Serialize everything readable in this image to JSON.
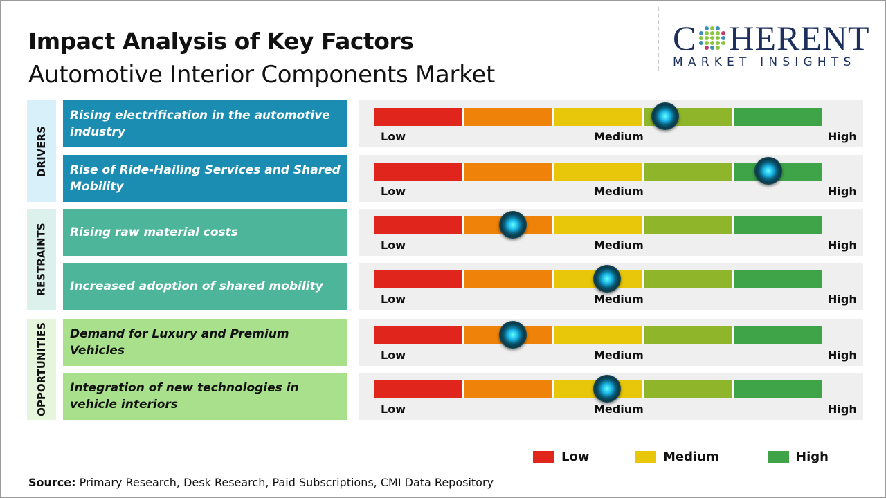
{
  "title": "Impact Analysis of Key Factors",
  "subtitle": "Automotive Interior Components Market",
  "logo": {
    "main": "COHERENT",
    "sub": "MARKET INSIGHTS"
  },
  "scale": {
    "low": "Low",
    "medium": "Medium",
    "high": "High",
    "segment_colors": [
      "#e0261c",
      "#ef8208",
      "#e8c70a",
      "#8fb52b",
      "#3fa447"
    ]
  },
  "categories": [
    {
      "label": "DRIVERS",
      "color": "#1b8db3",
      "bg": "#d8f0fa"
    },
    {
      "label": "RESTRAINTS",
      "color": "#4db59a",
      "bg": "#dcf1ec"
    },
    {
      "label": "OPPORTUNITIES",
      "color": "#a9e08b",
      "bg": "#e6f6dc"
    }
  ],
  "factors": [
    {
      "text": "Rising electrification in the automotive industry",
      "category": 0,
      "impact": 0.65
    },
    {
      "text": "Rise of Ride-Hailing Services and Shared Mobility",
      "category": 0,
      "impact": 0.88
    },
    {
      "text": "Rising raw material costs",
      "category": 1,
      "impact": 0.31
    },
    {
      "text": "Increased adoption of shared mobility",
      "category": 1,
      "impact": 0.52
    },
    {
      "text": "Demand for Luxury and Premium Vehicles",
      "category": 2,
      "impact": 0.31
    },
    {
      "text": "Integration of new technologies in vehicle interiors",
      "category": 2,
      "impact": 0.52
    }
  ],
  "legend": [
    {
      "label": "Low",
      "color": "#e0261c"
    },
    {
      "label": "Medium",
      "color": "#e8c70a"
    },
    {
      "label": "High",
      "color": "#3fa447"
    }
  ],
  "source": {
    "label": "Source:",
    "text": " Primary Research, Desk Research, Paid Subscriptions, CMI Data Repository"
  }
}
